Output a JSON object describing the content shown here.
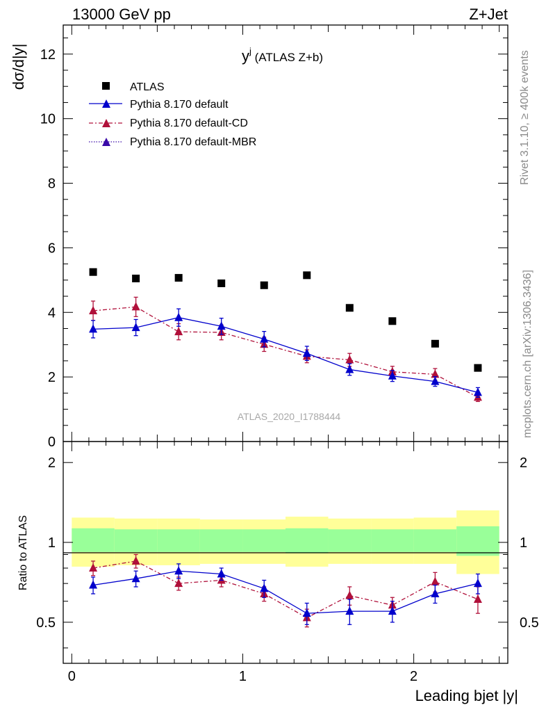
{
  "header": {
    "left": "13000 GeV pp",
    "right": "Z+Jet"
  },
  "side_text": {
    "rivet": "Rivet 3.1.10, ≥ 400k events",
    "mcplots": "mcplots.cern.ch [arXiv:1306.3436]"
  },
  "main_panel": {
    "title_main": "y",
    "title_sup": "j",
    "title_rest": " (ATLAS Z+b)",
    "ylabel": "dσ/d|y|",
    "watermark": "ATLAS_2020_I1788444",
    "yticks": [
      "0",
      "2",
      "4",
      "6",
      "8",
      "10",
      "12"
    ]
  },
  "ratio_panel": {
    "ylabel": "Ratio to ATLAS",
    "yticks": [
      "0.5",
      "1",
      "2"
    ]
  },
  "xaxis": {
    "label": "Leading bjet |y|",
    "ticks": [
      "0",
      "1",
      "2"
    ]
  },
  "legend": [
    "ATLAS",
    "Pythia 8.170 default",
    "Pythia 8.170 default-CD",
    "Pythia 8.170 default-MBR"
  ],
  "colors": {
    "atlas": "#000000",
    "default": "#0000cc",
    "cd": "#b0103a",
    "mbr": "#3a0aa8",
    "band_inner": "#99ff99",
    "band_outer": "#ffff99"
  },
  "chart_data": {
    "type": "scatter",
    "x_edges": [
      0,
      0.25,
      0.5,
      0.75,
      1.0,
      1.25,
      1.5,
      1.75,
      2.0,
      2.25,
      2.5
    ],
    "x": [
      0.125,
      0.375,
      0.625,
      0.875,
      1.125,
      1.375,
      1.625,
      1.875,
      2.125,
      2.375
    ],
    "xlim": [
      -0.05,
      2.55
    ],
    "ylim": [
      0,
      12.9
    ],
    "ratio_ylim": [
      0.35,
      2.4
    ],
    "ratio_scale": "log",
    "series": [
      {
        "name": "ATLAS",
        "values": [
          5.25,
          5.05,
          5.07,
          4.9,
          4.84,
          5.15,
          4.14,
          3.73,
          3.03,
          2.28
        ]
      },
      {
        "name": "Pythia 8.170 default",
        "values": [
          3.48,
          3.53,
          3.84,
          3.57,
          3.17,
          2.73,
          2.23,
          2.03,
          1.86,
          1.52
        ],
        "errors": [
          0.27,
          0.25,
          0.27,
          0.25,
          0.24,
          0.22,
          0.18,
          0.17,
          0.15,
          0.15
        ],
        "ratio": [
          0.69,
          0.73,
          0.78,
          0.76,
          0.67,
          0.54,
          0.55,
          0.55,
          0.64,
          0.7
        ],
        "ratio_errors": [
          0.05,
          0.05,
          0.05,
          0.04,
          0.05,
          0.05,
          0.06,
          0.05,
          0.05,
          0.06
        ]
      },
      {
        "name": "Pythia 8.170 default-CD",
        "values": [
          4.05,
          4.17,
          3.4,
          3.38,
          3.01,
          2.64,
          2.53,
          2.16,
          2.08,
          1.37
        ],
        "errors": [
          0.3,
          0.3,
          0.25,
          0.23,
          0.22,
          0.2,
          0.2,
          0.17,
          0.18,
          0.13
        ],
        "ratio": [
          0.8,
          0.85,
          0.7,
          0.72,
          0.64,
          0.52,
          0.63,
          0.58,
          0.71,
          0.61
        ],
        "ratio_errors": [
          0.05,
          0.05,
          0.04,
          0.04,
          0.04,
          0.04,
          0.05,
          0.04,
          0.06,
          0.07
        ]
      },
      {
        "name": "Pythia 8.170 default-MBR",
        "values": [],
        "ratio": []
      }
    ],
    "band": {
      "inner": [
        [
          0.92,
          1.13
        ],
        [
          0.92,
          1.12
        ],
        [
          0.92,
          1.12
        ],
        [
          0.92,
          1.12
        ],
        [
          0.92,
          1.12
        ],
        [
          0.91,
          1.13
        ],
        [
          0.92,
          1.12
        ],
        [
          0.92,
          1.12
        ],
        [
          0.92,
          1.12
        ],
        [
          0.89,
          1.15
        ]
      ],
      "outer": [
        [
          0.81,
          1.24
        ],
        [
          0.82,
          1.23
        ],
        [
          0.82,
          1.23
        ],
        [
          0.83,
          1.22
        ],
        [
          0.83,
          1.22
        ],
        [
          0.81,
          1.25
        ],
        [
          0.83,
          1.23
        ],
        [
          0.83,
          1.23
        ],
        [
          0.83,
          1.24
        ],
        [
          0.76,
          1.32
        ]
      ]
    }
  }
}
